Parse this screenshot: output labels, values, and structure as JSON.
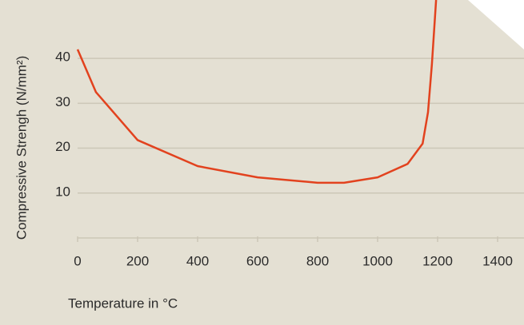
{
  "chart_data": {
    "type": "line",
    "x_label": "Temperature in °C",
    "y_label": "Compressive Strengh (N/mm²)",
    "x": [
      0,
      61,
      200,
      400,
      600,
      800,
      888,
      1000,
      1100,
      1150,
      1168,
      1181,
      1195
    ],
    "series": [
      {
        "color": "#e2421e",
        "values": [
          42,
          32.5,
          21.8,
          16,
          13.5,
          12.3,
          12.3,
          13.5,
          16.5,
          21,
          28,
          38.7,
          53
        ]
      }
    ],
    "xlim": [
      0,
      1400
    ],
    "xticks": [
      0,
      200,
      400,
      600,
      800,
      1000,
      1200,
      1400
    ],
    "ylim": [
      0,
      53
    ],
    "yticks": [
      10,
      20,
      30,
      40
    ],
    "grid": true
  }
}
